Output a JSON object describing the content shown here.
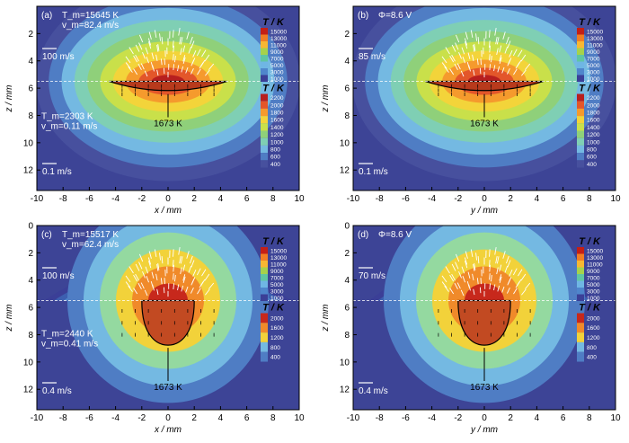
{
  "chart_data": [
    {
      "type": "heatmap",
      "panel_label": "(a)",
      "xlabel": "x / mm",
      "ylabel": "z / mm",
      "xlim": [
        -10,
        10
      ],
      "ylim": [
        13.5,
        0
      ],
      "xticks": [
        -10,
        -8,
        -6,
        -4,
        -2,
        0,
        2,
        4,
        6,
        8,
        10
      ],
      "yticks": [
        2,
        4,
        6,
        8,
        10,
        12
      ],
      "interface_z": 5.5,
      "upper": {
        "annotations": [
          "T_m=15645 K",
          "v_m=82.4 m/s"
        ],
        "ref_arrow": "100 m/s",
        "colorbar_title": "T / K",
        "colorbar_ticks": [
          15000,
          13000,
          11000,
          9000,
          7000,
          5000,
          3000,
          1000
        ]
      },
      "lower": {
        "annotations": [
          "T_m=2303 K",
          "v_m=0.11 m/s"
        ],
        "ref_arrow": "0.1 m/s",
        "colorbar_title": "T / K",
        "colorbar_ticks": [
          2200,
          2000,
          1800,
          1600,
          1400,
          1200,
          1000,
          800,
          600,
          400
        ]
      },
      "isotherm_label": "1673 K"
    },
    {
      "type": "heatmap",
      "panel_label": "(b)",
      "xlabel": "y / mm",
      "ylabel": "z / mm",
      "xlim": [
        -10,
        10
      ],
      "ylim": [
        13.5,
        0
      ],
      "xticks": [
        -10,
        -8,
        -6,
        -4,
        -2,
        0,
        2,
        4,
        6,
        8,
        10
      ],
      "yticks": [
        2,
        4,
        6,
        8,
        10,
        12
      ],
      "interface_z": 5.5,
      "upper": {
        "annotations": [
          "Φ=8.6 V"
        ],
        "ref_arrow": "85 m/s",
        "colorbar_title": "T / K",
        "colorbar_ticks": [
          15000,
          13000,
          11000,
          9000,
          7000,
          5000,
          3000,
          1000
        ]
      },
      "lower": {
        "annotations": [],
        "ref_arrow": "0.1 m/s",
        "colorbar_title": "T / K",
        "colorbar_ticks": [
          2200,
          2000,
          1800,
          1600,
          1400,
          1200,
          1000,
          800,
          600,
          400
        ]
      },
      "isotherm_label": "1673 K"
    },
    {
      "type": "heatmap",
      "panel_label": "(c)",
      "xlabel": "x / mm",
      "ylabel": "z / mm",
      "xlim": [
        -10,
        10
      ],
      "ylim": [
        13.5,
        0
      ],
      "xticks": [
        -10,
        -8,
        -6,
        -4,
        -2,
        0,
        2,
        4,
        6,
        8,
        10
      ],
      "yticks": [
        0,
        2,
        4,
        6,
        8,
        10,
        12
      ],
      "interface_z": 5.5,
      "upper": {
        "annotations": [
          "T_m=15517 K",
          "v_m=62.4 m/s"
        ],
        "ref_arrow": "100 m/s",
        "colorbar_title": "T / K",
        "colorbar_ticks": [
          15000,
          13000,
          11000,
          9000,
          7000,
          5000,
          3000,
          1000
        ]
      },
      "lower": {
        "annotations": [
          "T_m=2440 K",
          "v_m=0.41 m/s"
        ],
        "ref_arrow": "0.4 m/s",
        "colorbar_title": "T / K",
        "colorbar_ticks": [
          2000,
          1600,
          1200,
          800,
          400
        ]
      },
      "isotherm_label": "1673 K"
    },
    {
      "type": "heatmap",
      "panel_label": "(d)",
      "xlabel": "y / mm",
      "ylabel": "z / mm",
      "xlim": [
        -10,
        10
      ],
      "ylim": [
        13.5,
        0
      ],
      "xticks": [
        -10,
        -8,
        -6,
        -4,
        -2,
        0,
        2,
        4,
        6,
        8,
        10
      ],
      "yticks": [
        0,
        2,
        4,
        6,
        8,
        10,
        12
      ],
      "interface_z": 5.5,
      "upper": {
        "annotations": [
          "Φ=8.6 V"
        ],
        "ref_arrow": "70 m/s",
        "colorbar_title": "T / K",
        "colorbar_ticks": [
          15000,
          13000,
          11000,
          9000,
          7000,
          5000,
          3000,
          1000
        ]
      },
      "lower": {
        "annotations": [],
        "ref_arrow": "0.4 m/s",
        "colorbar_title": "T / K",
        "colorbar_ticks": [
          2000,
          1600,
          1200,
          800,
          400
        ]
      },
      "isotherm_label": "1673 K"
    }
  ]
}
